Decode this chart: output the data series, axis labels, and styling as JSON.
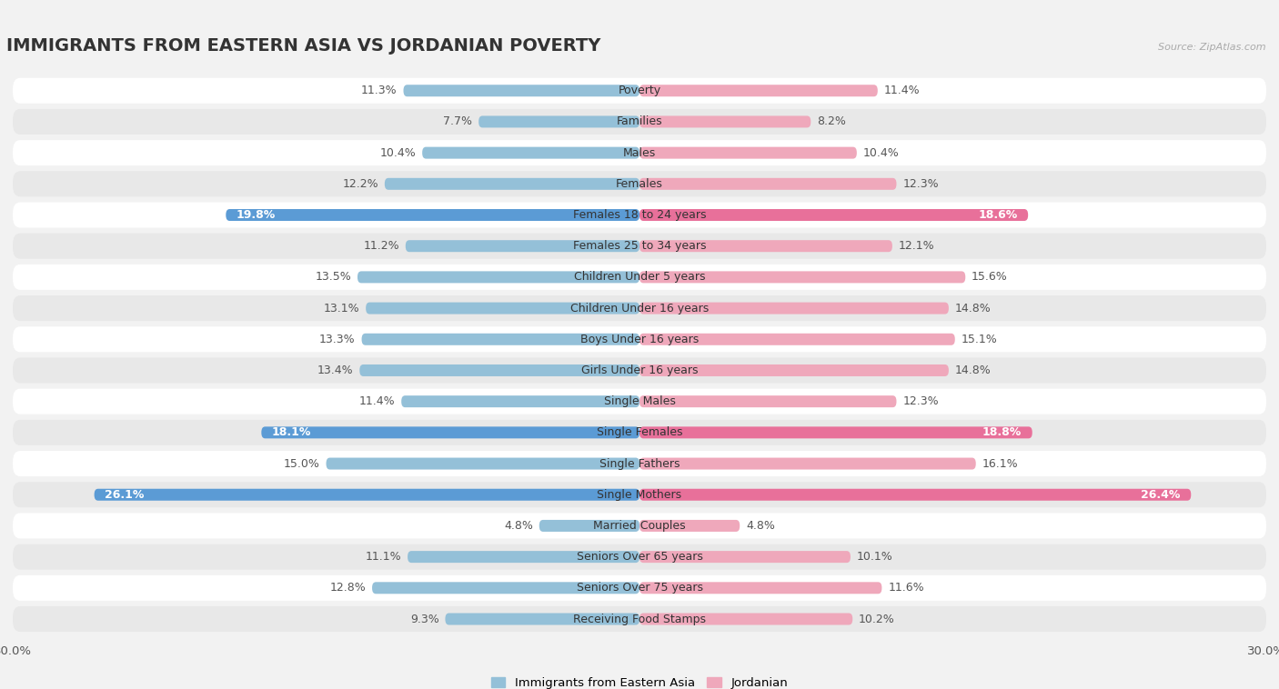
{
  "title": "IMMIGRANTS FROM EASTERN ASIA VS JORDANIAN POVERTY",
  "source": "Source: ZipAtlas.com",
  "categories": [
    "Poverty",
    "Families",
    "Males",
    "Females",
    "Females 18 to 24 years",
    "Females 25 to 34 years",
    "Children Under 5 years",
    "Children Under 16 years",
    "Boys Under 16 years",
    "Girls Under 16 years",
    "Single Males",
    "Single Females",
    "Single Fathers",
    "Single Mothers",
    "Married Couples",
    "Seniors Over 65 years",
    "Seniors Over 75 years",
    "Receiving Food Stamps"
  ],
  "left_values": [
    11.3,
    7.7,
    10.4,
    12.2,
    19.8,
    11.2,
    13.5,
    13.1,
    13.3,
    13.4,
    11.4,
    18.1,
    15.0,
    26.1,
    4.8,
    11.1,
    12.8,
    9.3
  ],
  "right_values": [
    11.4,
    8.2,
    10.4,
    12.3,
    18.6,
    12.1,
    15.6,
    14.8,
    15.1,
    14.8,
    12.3,
    18.8,
    16.1,
    26.4,
    4.8,
    10.1,
    11.6,
    10.2
  ],
  "left_color_normal": "#94C0D8",
  "right_color_normal": "#EFA8BB",
  "left_color_highlight": "#5B9BD5",
  "right_color_highlight": "#E8709A",
  "highlight_rows": [
    4,
    11,
    13
  ],
  "background_color": "#f2f2f2",
  "row_bg_odd": "#ffffff",
  "row_bg_even": "#e8e8e8",
  "left_label": "Immigrants from Eastern Asia",
  "right_label": "Jordanian",
  "x_max": 30.0,
  "title_fontsize": 14,
  "value_fontsize": 9,
  "category_fontsize": 9
}
